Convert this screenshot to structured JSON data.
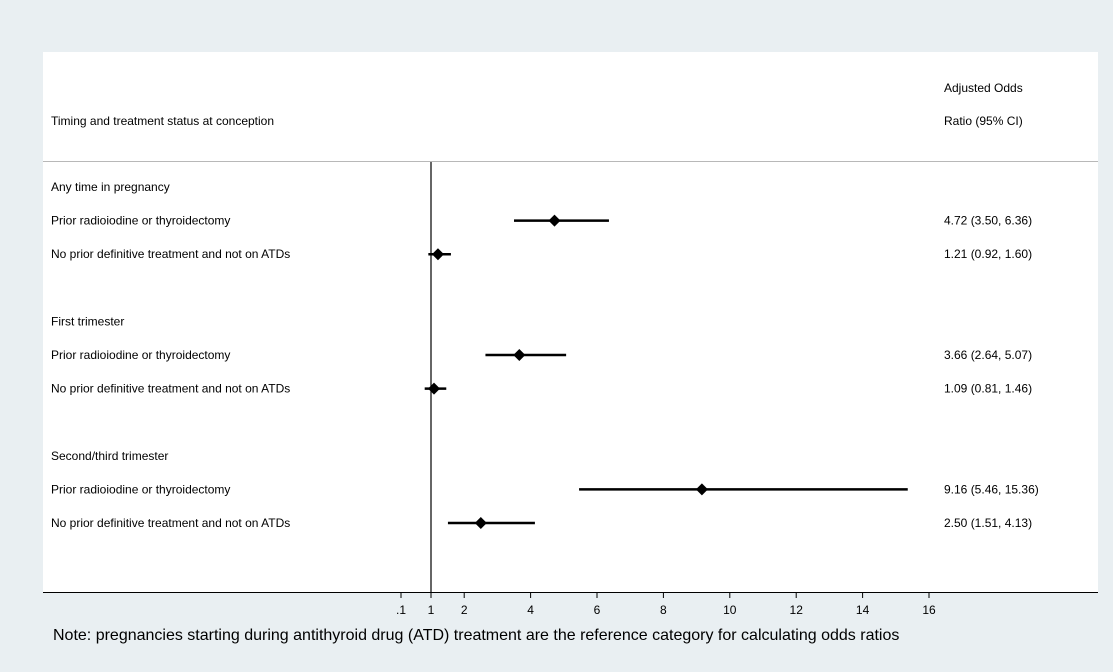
{
  "header": {
    "left_label": "Timing and treatment status at conception",
    "right_label_line1": "Adjusted Odds",
    "right_label_line2": "Ratio (95% CI)"
  },
  "note": "Note: pregnancies starting during antithyroid drug (ATD) treatment are the reference category for calculating odds ratios",
  "chart_data": {
    "type": "forest",
    "reference_line": 1,
    "x_ticks": [
      ".1",
      "1",
      "2",
      "4",
      "6",
      "8",
      "10",
      "12",
      "14",
      "16"
    ],
    "x_tick_values": [
      0.1,
      1,
      2,
      4,
      6,
      8,
      10,
      12,
      14,
      16
    ],
    "groups": [
      {
        "label": "Any time in pregnancy",
        "rows": [
          {
            "label": "Prior radioiodine or thyroidectomy",
            "or": 4.72,
            "lo": 3.5,
            "hi": 6.36,
            "text": "4.72 (3.50, 6.36)"
          },
          {
            "label": "No prior definitive treatment and not on ATDs",
            "or": 1.21,
            "lo": 0.92,
            "hi": 1.6,
            "text": "1.21 (0.92, 1.60)"
          }
        ]
      },
      {
        "label": "First trimester",
        "rows": [
          {
            "label": "Prior radioiodine or thyroidectomy",
            "or": 3.66,
            "lo": 2.64,
            "hi": 5.07,
            "text": "3.66 (2.64, 5.07)"
          },
          {
            "label": "No prior definitive treatment and not on ATDs",
            "or": 1.09,
            "lo": 0.81,
            "hi": 1.46,
            "text": "1.09 (0.81, 1.46)"
          }
        ]
      },
      {
        "label": "Second/third trimester",
        "rows": [
          {
            "label": "Prior radioiodine or thyroidectomy",
            "or": 9.16,
            "lo": 5.46,
            "hi": 15.36,
            "text": "9.16 (5.46, 15.36)"
          },
          {
            "label": "No prior definitive treatment and not on ATDs",
            "or": 2.5,
            "lo": 1.51,
            "hi": 4.13,
            "text": "2.50 (1.51, 4.13)"
          }
        ]
      }
    ]
  }
}
